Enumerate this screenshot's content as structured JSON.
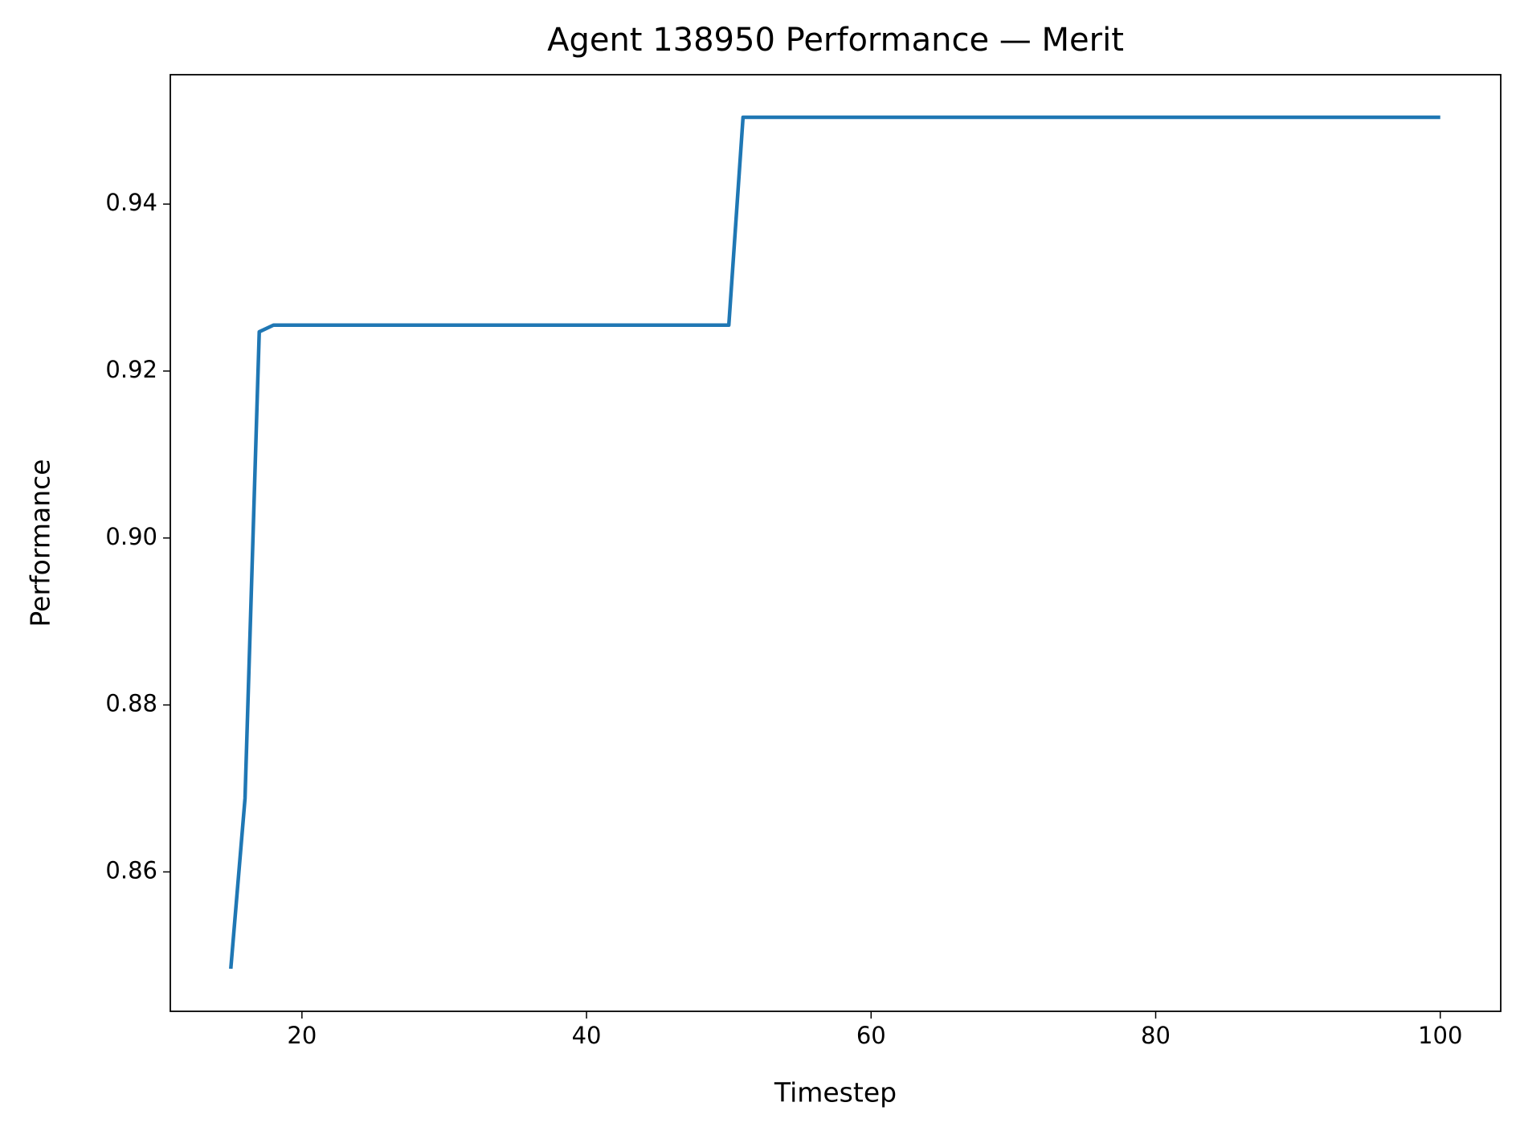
{
  "chart_data": {
    "type": "line",
    "title": "Agent 138950 Performance — Merit",
    "x_label": "Timestep",
    "y_label": "Performance",
    "color": "#1f77b4",
    "x": [
      15,
      16,
      17,
      18,
      19,
      20,
      21,
      22,
      23,
      24,
      25,
      26,
      27,
      28,
      29,
      30,
      31,
      32,
      33,
      34,
      35,
      36,
      37,
      38,
      39,
      40,
      41,
      42,
      43,
      44,
      45,
      46,
      47,
      48,
      49,
      50,
      51,
      52,
      53,
      54,
      55,
      56,
      57,
      58,
      59,
      60,
      61,
      62,
      63,
      64,
      65,
      66,
      67,
      68,
      69,
      70,
      71,
      72,
      73,
      74,
      75,
      76,
      77,
      78,
      79,
      80,
      81,
      82,
      83,
      84,
      85,
      86,
      87,
      88,
      89,
      90,
      91,
      92,
      93,
      94,
      95,
      96,
      97,
      98,
      99,
      100
    ],
    "values": [
      0.8484,
      0.8688,
      0.9247,
      0.9255,
      0.9255,
      0.9255,
      0.9255,
      0.9255,
      0.9255,
      0.9255,
      0.9255,
      0.9255,
      0.9255,
      0.9255,
      0.9255,
      0.9255,
      0.9255,
      0.9255,
      0.9255,
      0.9255,
      0.9255,
      0.9255,
      0.9255,
      0.9255,
      0.9255,
      0.9255,
      0.9255,
      0.9255,
      0.9255,
      0.9255,
      0.9255,
      0.9255,
      0.9255,
      0.9255,
      0.9255,
      0.9255,
      0.9504,
      0.9504,
      0.9504,
      0.9504,
      0.9504,
      0.9504,
      0.9504,
      0.9504,
      0.9504,
      0.9504,
      0.9504,
      0.9504,
      0.9504,
      0.9504,
      0.9504,
      0.9504,
      0.9504,
      0.9504,
      0.9504,
      0.9504,
      0.9504,
      0.9504,
      0.9504,
      0.9504,
      0.9504,
      0.9504,
      0.9504,
      0.9504,
      0.9504,
      0.9504,
      0.9504,
      0.9504,
      0.9504,
      0.9504,
      0.9504,
      0.9504,
      0.9504,
      0.9504,
      0.9504,
      0.9504,
      0.9504,
      0.9504,
      0.9504,
      0.9504,
      0.9504,
      0.9504,
      0.9504,
      0.9504,
      0.9504,
      0.9504
    ],
    "xlim": [
      10.75,
      104.25
    ],
    "xticks": [
      20,
      40,
      60,
      80,
      100
    ],
    "ylim": [
      0.8433,
      0.9555
    ],
    "yticks": [
      {
        "value": 0.86,
        "label": "0.86"
      },
      {
        "value": 0.88,
        "label": "0.88"
      },
      {
        "value": 0.9,
        "label": "0.90"
      },
      {
        "value": 0.92,
        "label": "0.92"
      },
      {
        "value": 0.94,
        "label": "0.94"
      }
    ],
    "grid": false
  }
}
